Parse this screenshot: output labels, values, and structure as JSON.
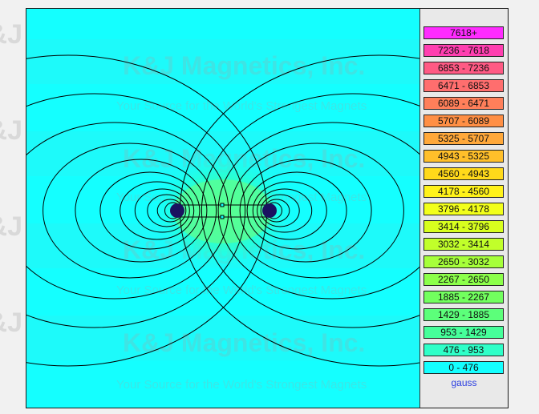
{
  "watermark": {
    "brand": "K&J Magnetics, Inc.",
    "tagline": "Your Source for the World's Strongest Magnets"
  },
  "legend": {
    "unit": "gauss",
    "items": [
      {
        "label": "7618+",
        "color": "#ff2bff"
      },
      {
        "label": "7236 - 7618",
        "color": "#ff3fb0"
      },
      {
        "label": "6853 - 7236",
        "color": "#ff5a84"
      },
      {
        "label": "6471 - 6853",
        "color": "#ff6e6e"
      },
      {
        "label": "6089 - 6471",
        "color": "#ff7f5a"
      },
      {
        "label": "5707 - 6089",
        "color": "#ff8f45"
      },
      {
        "label": "5325 - 5707",
        "color": "#ffa83a"
      },
      {
        "label": "4943 - 5325",
        "color": "#ffbf2a"
      },
      {
        "label": "4560 - 4943",
        "color": "#ffd91a"
      },
      {
        "label": "4178 - 4560",
        "color": "#fff21a"
      },
      {
        "label": "3796 - 4178",
        "color": "#f2ff1a"
      },
      {
        "label": "3414 - 3796",
        "color": "#d8ff1e"
      },
      {
        "label": "3032 - 3414",
        "color": "#c1ff2a"
      },
      {
        "label": "2650 - 3032",
        "color": "#a6ff3a"
      },
      {
        "label": "2267 - 2650",
        "color": "#8cff4a"
      },
      {
        "label": "1885 - 2267",
        "color": "#72ff5e"
      },
      {
        "label": "1429 - 1885",
        "color": "#5cff7a"
      },
      {
        "label": "953 - 1429",
        "color": "#46ff9a"
      },
      {
        "label": "476 - 953",
        "color": "#2effc8"
      },
      {
        "label": "0 - 476",
        "color": "#14ffff"
      }
    ]
  }
}
